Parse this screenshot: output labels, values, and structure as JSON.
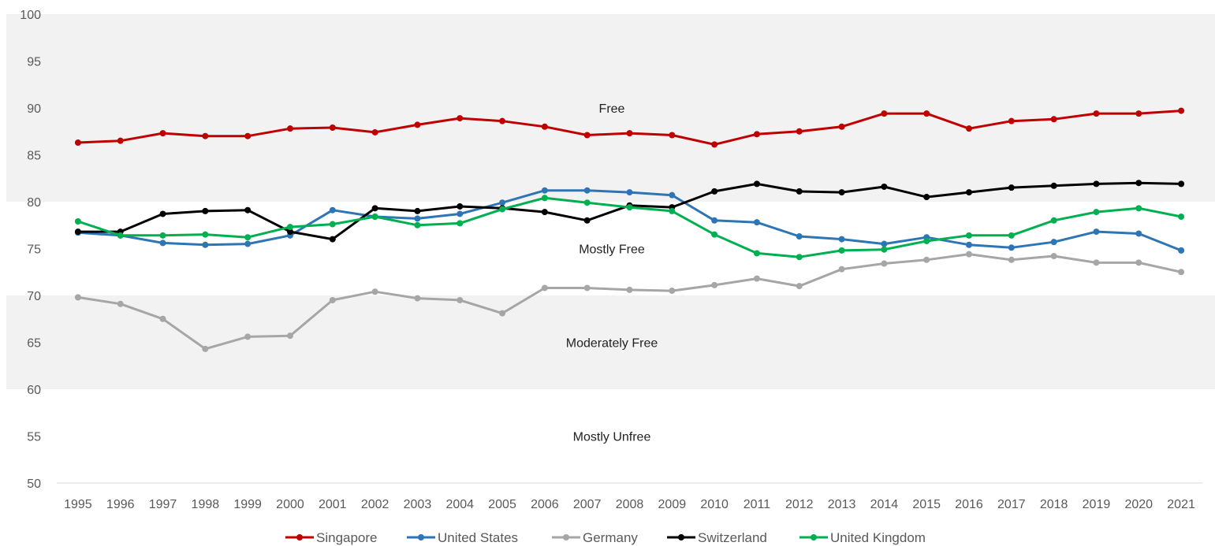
{
  "chart_data": {
    "type": "line",
    "title": "",
    "xlabel": "",
    "ylabel": "",
    "ylim": [
      50,
      100
    ],
    "yticks": [
      50,
      55,
      60,
      65,
      70,
      75,
      80,
      85,
      90,
      95,
      100
    ],
    "grid": false,
    "legend": "bottom",
    "categories": [
      "1995",
      "1996",
      "1997",
      "1998",
      "1999",
      "2000",
      "2001",
      "2002",
      "2003",
      "2004",
      "2005",
      "2006",
      "2007",
      "2008",
      "2009",
      "2010",
      "2011",
      "2012",
      "2013",
      "2014",
      "2015",
      "2016",
      "2017",
      "2018",
      "2019",
      "2020",
      "2021"
    ],
    "bands": [
      {
        "label": "Free",
        "from": 80,
        "to": 100,
        "color": "#f2f2f2"
      },
      {
        "label": "Mostly Free",
        "from": 70,
        "to": 80,
        "color": "#ffffff"
      },
      {
        "label": "Moderately Free",
        "from": 60,
        "to": 70,
        "color": "#f2f2f2"
      },
      {
        "label": "Mostly Unfree",
        "from": 50,
        "to": 60,
        "color": "#ffffff"
      }
    ],
    "series": [
      {
        "name": "Singapore",
        "color": "#c00000",
        "values": [
          86.3,
          86.5,
          87.3,
          87.0,
          87.0,
          87.8,
          87.9,
          87.4,
          88.2,
          88.9,
          88.6,
          88.0,
          87.1,
          87.3,
          87.1,
          86.1,
          87.2,
          87.5,
          88.0,
          89.4,
          89.4,
          87.8,
          88.6,
          88.8,
          89.4,
          89.4,
          89.7
        ]
      },
      {
        "name": "United States",
        "color": "#2e75b6",
        "values": [
          76.7,
          76.4,
          75.6,
          75.4,
          75.5,
          76.4,
          79.1,
          78.4,
          78.2,
          78.7,
          79.9,
          81.2,
          81.2,
          81.0,
          80.7,
          78.0,
          77.8,
          76.3,
          76.0,
          75.5,
          76.2,
          75.4,
          75.1,
          75.7,
          76.8,
          76.6,
          74.8
        ]
      },
      {
        "name": "Germany",
        "color": "#a6a6a6",
        "values": [
          69.8,
          69.1,
          67.5,
          64.3,
          65.6,
          65.7,
          69.5,
          70.4,
          69.7,
          69.5,
          68.1,
          70.8,
          70.8,
          70.6,
          70.5,
          71.1,
          71.8,
          71.0,
          72.8,
          73.4,
          73.8,
          74.4,
          73.8,
          74.2,
          73.5,
          73.5,
          72.5
        ]
      },
      {
        "name": "Switzerland",
        "color": "#000000",
        "values": [
          76.8,
          76.8,
          78.7,
          79.0,
          79.1,
          76.8,
          76.0,
          79.3,
          79.0,
          79.5,
          79.3,
          78.9,
          78.0,
          79.6,
          79.4,
          81.1,
          81.9,
          81.1,
          81.0,
          81.6,
          80.5,
          81.0,
          81.5,
          81.7,
          81.9,
          82.0,
          81.9
        ]
      },
      {
        "name": "United Kingdom",
        "color": "#00b050",
        "values": [
          77.9,
          76.4,
          76.4,
          76.5,
          76.2,
          77.3,
          77.6,
          78.4,
          77.5,
          77.7,
          79.2,
          80.4,
          79.9,
          79.4,
          79.0,
          76.5,
          74.5,
          74.1,
          74.8,
          74.9,
          75.8,
          76.4,
          76.4,
          78.0,
          78.9,
          79.3,
          78.4
        ]
      }
    ]
  }
}
